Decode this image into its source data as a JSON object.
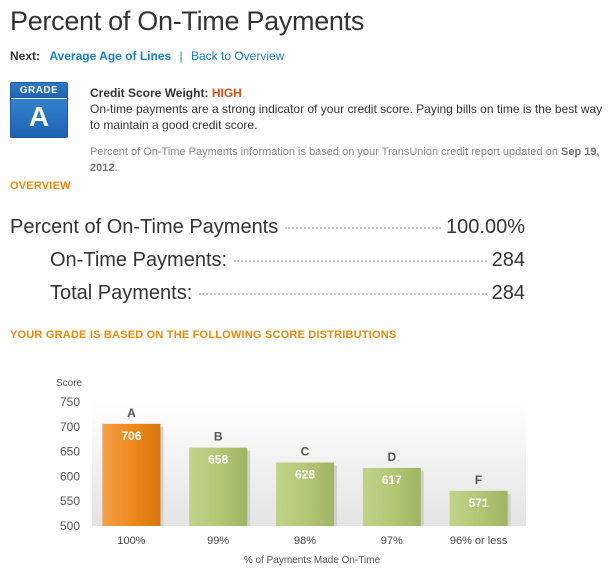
{
  "title": "Percent of On-Time Payments",
  "nav": {
    "next_label": "Next:",
    "next_link": "Average Age of Lines",
    "separator": "|",
    "back_link": "Back to Overview"
  },
  "grade": {
    "label": "GRADE",
    "letter": "A"
  },
  "weight": {
    "label": "Credit Score Weight:",
    "value": "HIGH"
  },
  "description": "On-time payments are a strong indicator of your credit score. Paying bills on time is the best way to maintain a good credit score.",
  "source": {
    "text": "Percent of On-Time Payments information is based on your TransUnion credit report updated on",
    "date": "Sep 19, 2012",
    "end": "."
  },
  "overview": {
    "heading": "OVERVIEW",
    "rows": [
      {
        "label": "Percent of On-Time Payments",
        "value": "100.00%"
      },
      {
        "label": "On-Time Payments:",
        "value": "284"
      },
      {
        "label": "Total Payments:",
        "value": "284"
      }
    ]
  },
  "distribution_heading": "YOUR GRADE IS BASED ON THE FOLLOWING SCORE DISTRIBUTIONS",
  "chart_data": {
    "type": "bar",
    "ylabel": "Score",
    "xlabel": "% of Payments Made On-Time",
    "ylim": [
      500,
      750
    ],
    "yticks": [
      750,
      700,
      650,
      600,
      550,
      500
    ],
    "categories": [
      "100%",
      "99%",
      "98%",
      "97%",
      "96% or less"
    ],
    "grades": [
      "A",
      "B",
      "C",
      "D",
      "F"
    ],
    "values": [
      706,
      658,
      628,
      617,
      571
    ],
    "highlight_index": 0,
    "colors": {
      "highlight": "#ef8a1e",
      "normal": "#b3c777",
      "label": "#ffffff",
      "axis_text": "#555555"
    }
  }
}
